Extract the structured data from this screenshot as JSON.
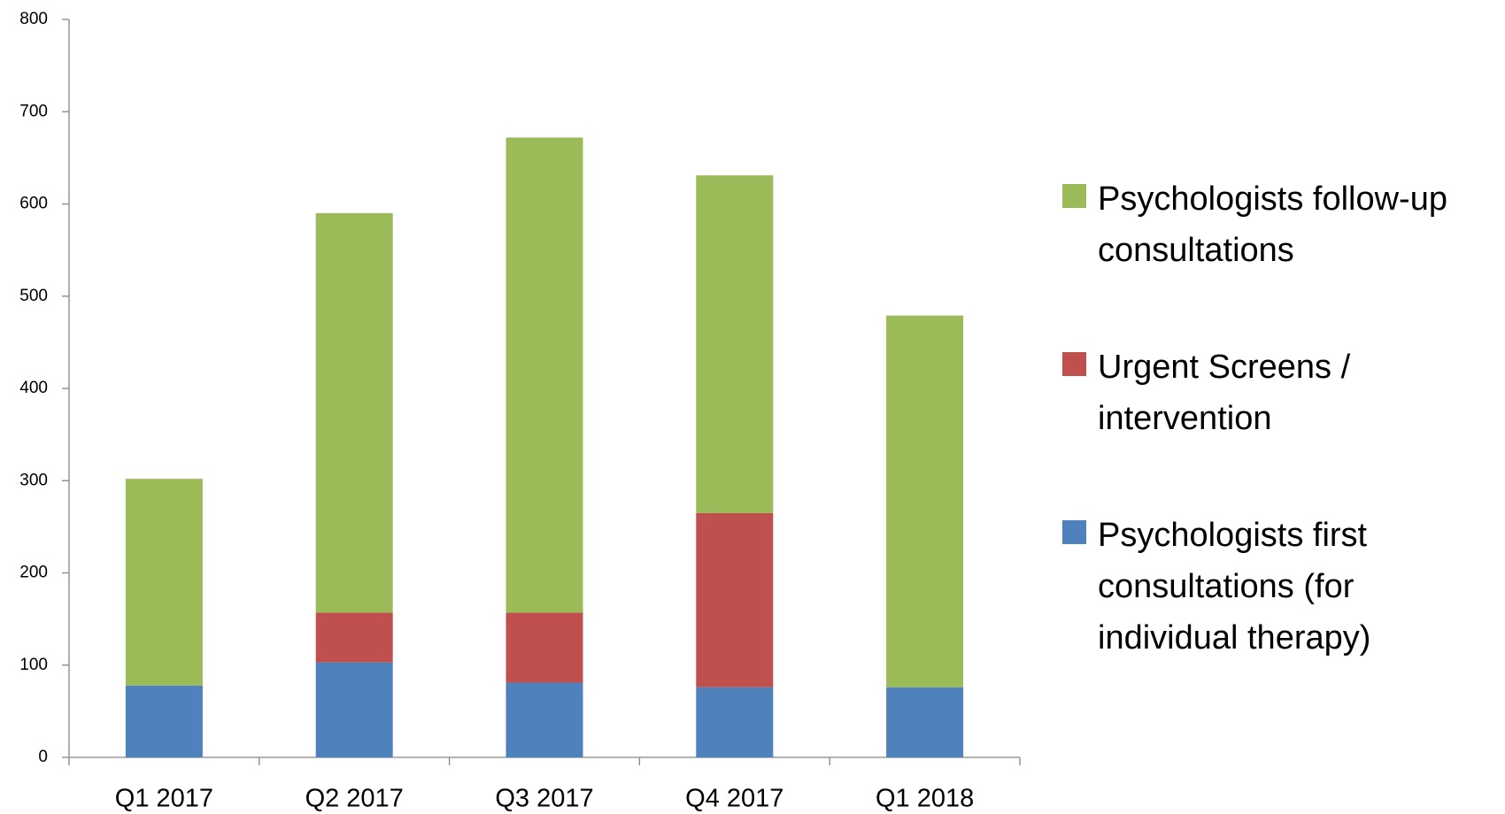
{
  "chart_data": {
    "type": "stacked_bar",
    "categories": [
      "Q1 2017",
      "Q2 2017",
      "Q3 2017",
      "Q4 2017",
      "Q1 2018"
    ],
    "series": [
      {
        "name": "Psychologists first consultations (for individual therapy)",
        "color": "#4f81bd",
        "values": [
          78,
          103,
          81,
          76,
          76
        ]
      },
      {
        "name": "Urgent Screens / intervention",
        "color": "#c0504d",
        "values": [
          0,
          54,
          76,
          189,
          0
        ]
      },
      {
        "name": "Psychologists follow-up consultations",
        "color": "#9bbb59",
        "values": [
          224,
          433,
          515,
          366,
          403
        ]
      }
    ],
    "ylim": [
      0,
      800
    ],
    "yticks": [
      0,
      100,
      200,
      300,
      400,
      500,
      600,
      700,
      800
    ],
    "grid": false,
    "legend": "right"
  }
}
